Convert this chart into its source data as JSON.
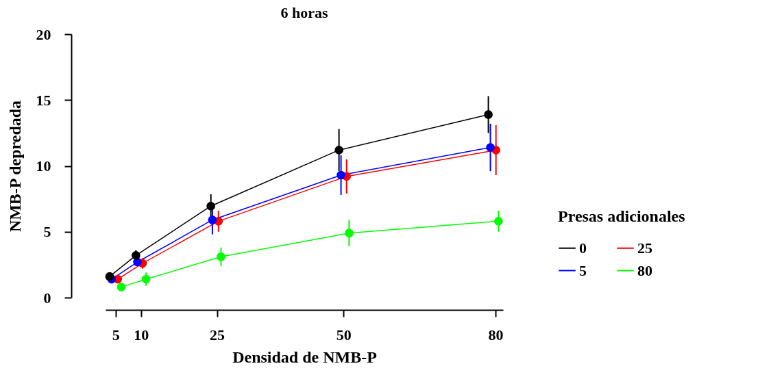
{
  "chart_data": {
    "type": "line",
    "title": "6 horas",
    "xlabel": "Densidad de NMB-P",
    "ylabel": "NMB-P depredada",
    "legend_title": "Presas adicionales",
    "xlim": [
      3,
      81.5
    ],
    "xticks": [
      5,
      10,
      25,
      50,
      80
    ],
    "ylim": [
      0,
      20
    ],
    "yticks": [
      0,
      5,
      10,
      15,
      20
    ],
    "grid": false,
    "legend": "right",
    "marker": "circle",
    "line_style": "solid",
    "series": [
      {
        "name": "0",
        "color": "#000000",
        "x": [
          3.8,
          9.0,
          23.8,
          49.1,
          78.6
        ],
        "values": [
          1.6,
          3.2,
          6.95,
          11.2,
          13.9
        ],
        "errors": [
          null,
          0.4,
          0.9,
          1.6,
          1.4
        ]
      },
      {
        "name": "5",
        "color": "#0000ff",
        "x": [
          4.2,
          9.3,
          24.1,
          49.5,
          79.0
        ],
        "values": [
          1.4,
          2.7,
          5.9,
          9.3,
          11.4
        ],
        "errors": [
          null,
          null,
          1.1,
          1.5,
          1.8
        ]
      },
      {
        "name": "25",
        "color": "#ff0000",
        "x": [
          5.4,
          10.3,
          25.3,
          50.6,
          80.1
        ],
        "values": [
          1.4,
          2.6,
          5.8,
          9.2,
          11.2
        ],
        "errors": [
          null,
          0.4,
          0.8,
          1.3,
          1.9
        ]
      },
      {
        "name": "80",
        "color": "#00ff00",
        "x": [
          6.1,
          11.0,
          25.8,
          51.1,
          80.6
        ],
        "values": [
          0.8,
          1.4,
          3.1,
          4.9,
          5.8
        ],
        "errors": [
          null,
          0.5,
          0.7,
          1.0,
          0.8
        ]
      }
    ]
  }
}
